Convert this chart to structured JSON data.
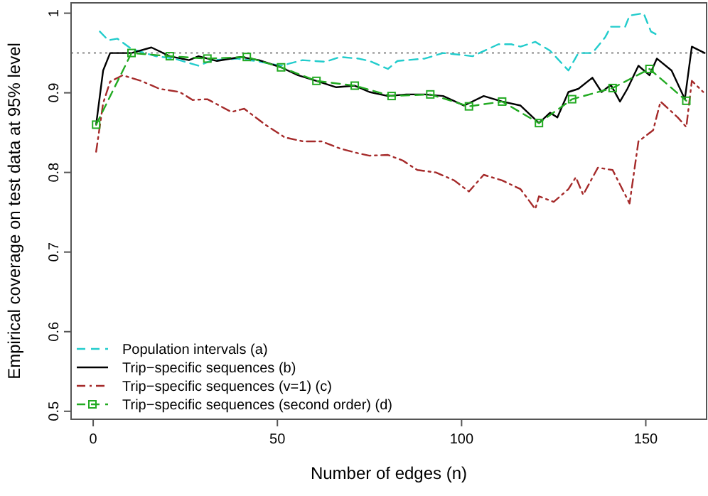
{
  "chart_data": {
    "type": "line",
    "xlabel": "Number of edges (n)",
    "ylabel": "Empirical coverage on test data at 95% level",
    "xlim": [
      -6,
      166.5
    ],
    "ylim": [
      0.49,
      1.013
    ],
    "xticks": [
      0,
      50,
      100,
      150
    ],
    "yticks": [
      0.5,
      0.6,
      0.7,
      0.8,
      0.9,
      1.0
    ],
    "grid": false,
    "legend": "bottom left",
    "ref_lines": [
      {
        "axis": "y",
        "value": 0.95,
        "color": "#888888",
        "line_style": "dotted"
      }
    ],
    "series": [
      {
        "name": "Population intervals (a)",
        "color": "#22cccc",
        "line_style": "dashed",
        "marker": "none",
        "x": [
          1.8,
          4.1,
          6.6,
          10.4,
          17,
          22,
          28.6,
          32.4,
          39,
          44,
          51,
          56.8,
          63,
          67,
          72,
          75,
          80,
          82.6,
          90,
          95,
          103,
          110,
          113.5,
          116,
          120,
          124,
          129,
          131.7,
          135.5,
          139,
          140.5,
          144.4,
          145.6,
          149.4,
          151.4,
          153
        ],
        "values": [
          0.977,
          0.966,
          0.968,
          0.955,
          0.946,
          0.943,
          0.934,
          0.941,
          0.943,
          0.94,
          0.934,
          0.941,
          0.939,
          0.945,
          0.943,
          0.94,
          0.93,
          0.94,
          0.943,
          0.95,
          0.946,
          0.961,
          0.961,
          0.958,
          0.964,
          0.953,
          0.928,
          0.95,
          0.95,
          0.97,
          0.983,
          0.983,
          0.997,
          1.0,
          0.977,
          0.973
        ]
      },
      {
        "name": "Trip−specific sequences (b)",
        "color": "#000000",
        "line_style": "solid",
        "marker": "none",
        "x": [
          0.8,
          2.7,
          4.6,
          10.4,
          15.8,
          20.8,
          26,
          28.6,
          33.6,
          40,
          45,
          51,
          55.6,
          60.6,
          66,
          71,
          75,
          80,
          85,
          90,
          95,
          100.7,
          106,
          111,
          116,
          121,
          124,
          126,
          129,
          131.7,
          135.5,
          138,
          140.5,
          143,
          145,
          148,
          151,
          153,
          157,
          160.6,
          162.5,
          166
        ],
        "values": [
          0.86,
          0.928,
          0.95,
          0.95,
          0.957,
          0.946,
          0.941,
          0.946,
          0.94,
          0.945,
          0.941,
          0.932,
          0.922,
          0.915,
          0.907,
          0.909,
          0.901,
          0.896,
          0.898,
          0.898,
          0.896,
          0.884,
          0.896,
          0.889,
          0.884,
          0.862,
          0.875,
          0.869,
          0.901,
          0.905,
          0.919,
          0.901,
          0.91,
          0.889,
          0.905,
          0.934,
          0.922,
          0.943,
          0.928,
          0.892,
          0.958,
          0.95
        ]
      },
      {
        "name": "Trip−specific sequences (v=1) (c)",
        "color": "#a52a2a",
        "line_style": "dashdot",
        "marker": "none",
        "x": [
          0.8,
          2.7,
          4.6,
          8,
          13,
          18,
          23.5,
          27,
          31,
          37.5,
          41,
          46.7,
          52,
          57,
          62,
          67,
          72,
          75,
          80,
          84,
          88,
          93,
          98,
          102,
          106,
          111,
          116,
          120,
          121,
          125,
          129,
          131,
          133,
          137,
          141,
          145.6,
          148,
          152,
          154,
          158.7,
          161,
          162.5,
          165.6
        ],
        "values": [
          0.826,
          0.887,
          0.914,
          0.922,
          0.915,
          0.905,
          0.901,
          0.891,
          0.892,
          0.876,
          0.88,
          0.86,
          0.844,
          0.839,
          0.839,
          0.83,
          0.824,
          0.821,
          0.822,
          0.815,
          0.803,
          0.8,
          0.79,
          0.776,
          0.797,
          0.79,
          0.779,
          0.754,
          0.77,
          0.763,
          0.779,
          0.794,
          0.772,
          0.806,
          0.803,
          0.761,
          0.839,
          0.853,
          0.889,
          0.869,
          0.857,
          0.915,
          0.901
        ]
      },
      {
        "name": "Trip−specific sequences (second order) (d)",
        "color": "#22aa22",
        "line_style": "dashed",
        "marker": "square",
        "x": [
          0.8,
          10.4,
          20.8,
          31,
          41.7,
          51,
          60.6,
          71,
          81,
          91.5,
          102,
          111,
          121,
          130,
          141,
          151,
          161
        ],
        "values": [
          0.86,
          0.95,
          0.946,
          0.943,
          0.945,
          0.932,
          0.915,
          0.909,
          0.896,
          0.898,
          0.883,
          0.889,
          0.862,
          0.892,
          0.906,
          0.93,
          0.89
        ]
      }
    ]
  }
}
